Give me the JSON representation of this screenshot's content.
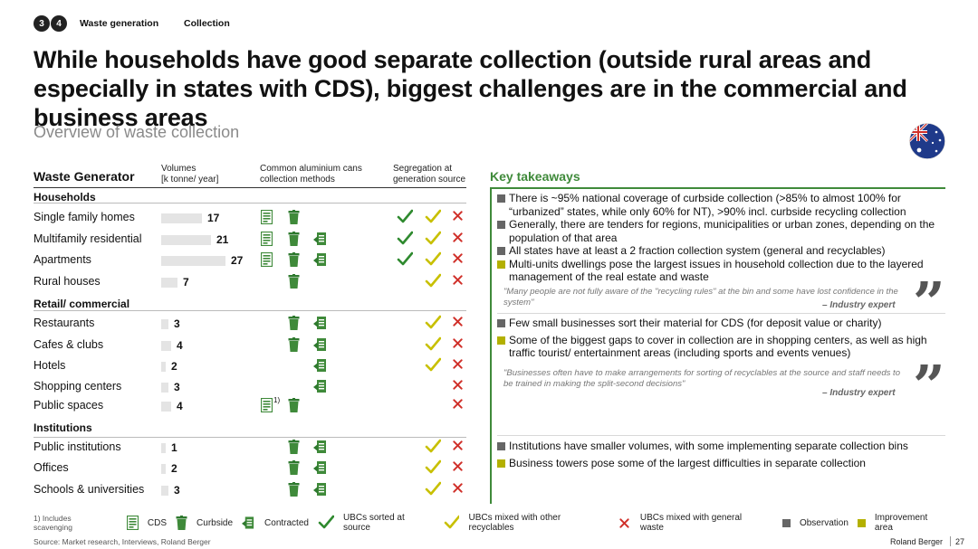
{
  "nav": {
    "step1": "3",
    "step2": "4",
    "tab1": "Waste generation",
    "tab2": "Collection"
  },
  "title": "While households have good separate collection (outside rural areas and especially in states with CDS), biggest challenges are in the commercial and business areas",
  "subtitle": "Overview of waste collection",
  "table": {
    "col_waste_generator": "Waste Generator",
    "col_volumes": [
      "Volumes",
      "[k tonne/ year]"
    ],
    "col_methods": [
      "Common aluminium cans",
      "collection methods"
    ],
    "col_segregation": [
      "Segregation at",
      "generation source"
    ],
    "sections": [
      {
        "label": "Households",
        "rows": [
          {
            "label": "Single family homes",
            "value": "17",
            "volume": 17,
            "methods": [
              "cds",
              "curbside"
            ],
            "seg": [
              "sorted",
              "mixed_recyclables",
              "mixed_general"
            ]
          },
          {
            "label": "Multifamily residential",
            "value": "21",
            "volume": 21,
            "methods": [
              "cds",
              "curbside",
              "contracted"
            ],
            "seg": [
              "sorted",
              "mixed_recyclables",
              "mixed_general"
            ]
          },
          {
            "label": "Apartments",
            "value": "27",
            "volume": 27,
            "methods": [
              "cds",
              "curbside",
              "contracted"
            ],
            "seg": [
              "sorted",
              "mixed_recyclables",
              "mixed_general"
            ]
          },
          {
            "label": "Rural houses",
            "value": "7",
            "volume": 7,
            "methods": [
              "curbside"
            ],
            "seg": [
              "mixed_recyclables",
              "mixed_general"
            ]
          }
        ]
      },
      {
        "label": "Retail/ commercial",
        "rows": [
          {
            "label": "Restaurants",
            "value": "3",
            "volume": 3,
            "methods": [
              "curbside",
              "contracted"
            ],
            "seg": [
              "mixed_recyclables",
              "mixed_general"
            ]
          },
          {
            "label": "Cafes & clubs",
            "value": "4",
            "volume": 4,
            "methods": [
              "curbside",
              "contracted"
            ],
            "seg": [
              "mixed_recyclables",
              "mixed_general"
            ]
          },
          {
            "label": "Hotels",
            "value": "2",
            "volume": 2,
            "methods": [
              "contracted"
            ],
            "seg": [
              "mixed_recyclables",
              "mixed_general"
            ]
          },
          {
            "label": "Shopping centers",
            "value": "3",
            "volume": 3,
            "methods": [
              "contracted"
            ],
            "seg": [
              "mixed_general"
            ]
          },
          {
            "label": "Public spaces",
            "value": "4",
            "volume": 4,
            "methods": [
              "cds_footnote",
              "curbside"
            ],
            "seg": [
              "mixed_general"
            ]
          }
        ]
      },
      {
        "label": "Institutions",
        "rows": [
          {
            "label": "Public institutions",
            "value": "1",
            "volume": 1,
            "methods": [
              "curbside",
              "contracted"
            ],
            "seg": [
              "mixed_recyclables",
              "mixed_general"
            ]
          },
          {
            "label": "Offices",
            "value": "2",
            "volume": 2,
            "methods": [
              "curbside",
              "contracted"
            ],
            "seg": [
              "mixed_recyclables",
              "mixed_general"
            ]
          },
          {
            "label": "Schools & universities",
            "value": "3",
            "volume": 3,
            "methods": [
              "curbside",
              "contracted"
            ],
            "seg": [
              "mixed_recyclables",
              "mixed_general"
            ]
          }
        ]
      }
    ],
    "footnote_mark": "1)"
  },
  "takeaways": {
    "title": "Key takeaways",
    "households": [
      {
        "type": "observation",
        "text": "There is ~95% national coverage of curbside collection (>85% to almost 100% for “urbanized” states, while only 60% for NT), >90% incl. curbside recycling collection"
      },
      {
        "type": "observation",
        "text": "Generally, there are tenders for regions, municipalities or urban zones, depending on the population of that area"
      },
      {
        "type": "observation",
        "text": "All states have at least a 2 fraction collection system (general and recyclables)"
      },
      {
        "type": "improvement",
        "text": "Multi-units dwellings pose the largest issues in household collection due to the layered management of the real estate and waste"
      }
    ],
    "quote1": "\"Many people are not fully aware of the \"recycling rules\" at the bin and some have lost confidence in the system\"",
    "quote1_source": "– Industry expert",
    "retail": [
      {
        "type": "observation",
        "text": "Few small businesses sort their material for CDS (for deposit value or charity)"
      },
      {
        "type": "improvement",
        "text": "Some of the biggest gaps to cover in collection are in shopping centers, as well as high traffic tourist/ entertainment areas (including sports and events venues)"
      }
    ],
    "quote2": "\"Businesses often have to make arrangements for sorting of recyclables at the source and staff needs to be trained in making the split-second decisions\"",
    "quote2_source": "– Industry expert",
    "institutions": [
      {
        "type": "observation",
        "text": "Institutions have smaller volumes, with some implementing separate collection bins"
      },
      {
        "type": "improvement",
        "text": "Business towers pose some of the largest difficulties in separate collection"
      }
    ]
  },
  "legend": {
    "footnote": "1) Includes scavenging",
    "cds": "CDS",
    "curbside": "Curbside",
    "contracted": "Contracted",
    "sorted": "UBCs sorted at source",
    "mixed_recyclables": "UBCs mixed with other recyclables",
    "mixed_general": "UBCs mixed with general waste",
    "observation": "Observation",
    "improvement": "Improvement area"
  },
  "source": "Source: Market research, Interviews, Roland Berger",
  "brand": "Roland Berger",
  "page_number": "27",
  "colors": {
    "green": "#3f8a3a",
    "observation": "#666666",
    "improvement": "#b3b000",
    "check_yellow": "#c8c000",
    "cross_red": "#d0302a"
  }
}
